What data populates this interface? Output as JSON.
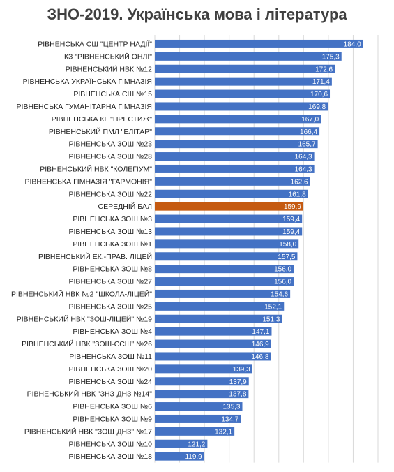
{
  "chart_data": {
    "type": "bar",
    "orientation": "horizontal",
    "title": "ЗНО-2019. Українська мова і література",
    "xlabel": "",
    "ylabel": "",
    "xlim": [
      100,
      190
    ],
    "x_ticks": [
      "100,0",
      "110,0",
      "120,0",
      "130,0",
      "140,0",
      "150,0",
      "160,0",
      "170,0",
      "180,0",
      "190,0"
    ],
    "grid": true,
    "legend": "none",
    "bar_color": "#4472C4",
    "highlight_color": "#C55A11",
    "highlight_category": "СЕРЕДНІЙ БАЛ",
    "categories": [
      "РІВНЕНСЬКА СШ \"ЦЕНТР НАДІЇ\"",
      "КЗ \"РІВНЕНСЬКИЙ ОНЛІ\"",
      "РІВНЕНСЬКИЙ НВК №12",
      "РІВНЕНСЬКА УКРАЇНСЬКА ГІМНАЗІЯ",
      "РІВНЕНСЬКА СШ №15",
      "РІВНЕНСЬКА ГУМАНІТАРНА ГІМНАЗІЯ",
      "РІВНЕНСЬКА КГ \"ПРЕСТИЖ\"",
      "РІВНЕНСЬКИЙ ПМЛ \"ЕЛІТАР\"",
      "РІВНЕНСЬКА ЗОШ №23",
      "РІВНЕНСЬКА ЗОШ №28",
      "РІВНЕНСЬКИЙ НВК \"КОЛЕГІУМ\"",
      "РІВНЕНСЬКА ГІМНАЗІЯ \"ГАРМОНІЯ\"",
      "РІВНЕНСЬКА ЗОШ №22",
      "СЕРЕДНІЙ БАЛ",
      "РІВНЕНСЬКА ЗОШ №3",
      "РІВНЕНСЬКА ЗОШ №13",
      "РІВНЕНСЬКА ЗОШ №1",
      "РІВНЕНСЬКИЙ ЕК.-ПРАВ. ЛІЦЕЙ",
      "РІВНЕНСЬКА ЗОШ №8",
      "РІВНЕНСЬКА ЗОШ №27",
      "РІВНЕНСЬКИЙ НВК №2 \"ШКОЛА-ЛІЦЕЙ\"",
      "РІВНЕНСЬКА ЗОШ №25",
      "РІВНЕНСЬКИЙ НВК \"ЗОШ-ЛІЦЕЙ\" №19",
      "РІВНЕНСЬКА ЗОШ №4",
      "РІВНЕНСЬКИЙ НВК \"ЗОШ-ССШ\" №26",
      "РІВНЕНСЬКА ЗОШ №11",
      "РІВНЕНСЬКА ЗОШ №20",
      "РІВНЕНСЬКА ЗОШ №24",
      "РІВНЕНСЬКИЙ НВК \"ЗНЗ-ДНЗ №14\"",
      "РІВНЕНСЬКА ЗОШ №6",
      "РІВНЕНСЬКА ЗОШ №9",
      "РІВНЕНСЬКИЙ НВК \"ЗОШ-ДНЗ\" №17",
      "РІВНЕНСЬКА ЗОШ №10",
      "РІВНЕНСЬКА ЗОШ №18"
    ],
    "values": [
      184.0,
      175.3,
      172.6,
      171.4,
      170.6,
      169.8,
      167.0,
      166.4,
      165.7,
      164.3,
      164.3,
      162.6,
      161.8,
      159.9,
      159.4,
      159.4,
      158.0,
      157.5,
      156.0,
      156.0,
      154.6,
      152.1,
      151.3,
      147.1,
      146.9,
      146.8,
      139.3,
      137.9,
      137.8,
      135.3,
      134.7,
      132.1,
      121.2,
      119.9
    ],
    "value_labels": [
      "184,0",
      "175,3",
      "172,6",
      "171,4",
      "170,6",
      "169,8",
      "167,0",
      "166,4",
      "165,7",
      "164,3",
      "164,3",
      "162,6",
      "161,8",
      "159,9",
      "159,4",
      "159,4",
      "158,0",
      "157,5",
      "156,0",
      "156,0",
      "154,6",
      "152,1",
      "151,3",
      "147,1",
      "146,9",
      "146,8",
      "139,3",
      "137,9",
      "137,8",
      "135,3",
      "134,7",
      "132,1",
      "121,2",
      "119,9"
    ]
  }
}
